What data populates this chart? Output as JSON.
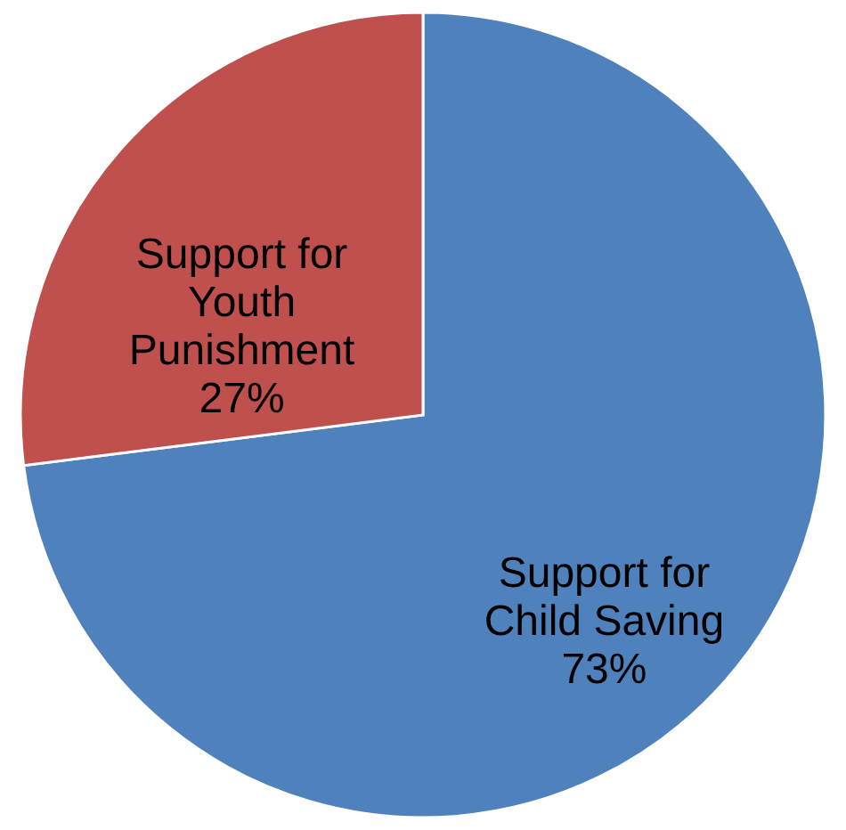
{
  "chart_data": {
    "type": "pie",
    "categories": [
      "Support for Child Saving",
      "Support for Youth Punishment"
    ],
    "values": [
      73,
      27
    ],
    "colors": [
      "#4f81bd",
      "#c0504d"
    ],
    "value_labels": [
      "73%",
      "27%"
    ],
    "legend": false
  }
}
